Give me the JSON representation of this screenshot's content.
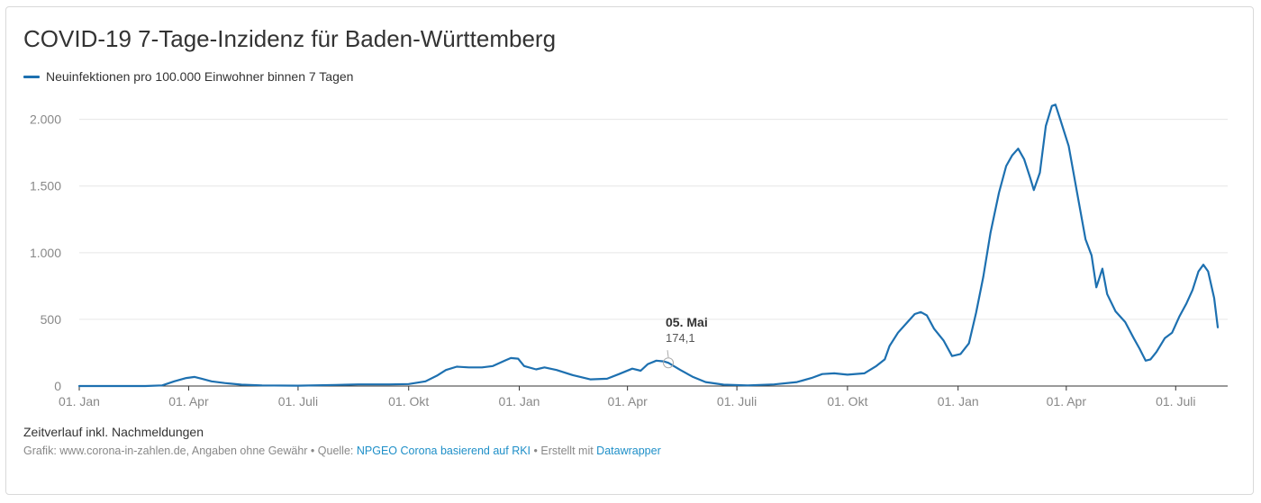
{
  "title": "COVID-19 7-Tage-Inzidenz für Baden-Württemberg",
  "legend_label": "Neuinfektionen pro 100.000 Einwohner binnen 7 Tagen",
  "notes": "Zeitverlauf inkl. Nachmeldungen",
  "footer": {
    "prefix": "Grafik: www.corona-in-zahlen.de, Angaben ohne Gewähr • Quelle: ",
    "source_link": "NPGEO Corona basierend auf RKI",
    "middle": " • Erstellt mit ",
    "tool_link": "Datawrapper"
  },
  "colors": {
    "line": "#1d70b0",
    "grid": "#e6e6e6",
    "axis": "#333333"
  },
  "chart_data": {
    "type": "line",
    "title": "COVID-19 7-Tage-Inzidenz für Baden-Württemberg",
    "xlabel": "",
    "ylabel": "",
    "ylim": [
      0,
      2200
    ],
    "xlim": [
      "2020-01-01",
      "2022-08-05"
    ],
    "y_ticks": [
      0,
      500,
      1000,
      1500,
      2000
    ],
    "y_tick_labels": [
      "0",
      "500",
      "1.000",
      "1.500",
      "2.000"
    ],
    "x_ticks": [
      {
        "date": "2020-01-01",
        "label": "01. Jan"
      },
      {
        "date": "2020-04-01",
        "label": "01. Apr"
      },
      {
        "date": "2020-07-01",
        "label": "01. Juli"
      },
      {
        "date": "2020-10-01",
        "label": "01. Okt"
      },
      {
        "date": "2021-01-01",
        "label": "01. Jan"
      },
      {
        "date": "2021-04-01",
        "label": "01. Apr"
      },
      {
        "date": "2021-07-01",
        "label": "01. Juli"
      },
      {
        "date": "2021-10-01",
        "label": "01. Okt"
      },
      {
        "date": "2022-01-01",
        "label": "01. Jan"
      },
      {
        "date": "2022-04-01",
        "label": "01. Apr"
      },
      {
        "date": "2022-07-01",
        "label": "01. Juli"
      }
    ],
    "grid": true,
    "legend": "top-left",
    "series": [
      {
        "name": "Neuinfektionen pro 100.000 Einwohner binnen 7 Tagen",
        "points": [
          [
            "2020-01-01",
            0
          ],
          [
            "2020-02-25",
            0
          ],
          [
            "2020-03-10",
            5
          ],
          [
            "2020-03-20",
            35
          ],
          [
            "2020-03-30",
            60
          ],
          [
            "2020-04-06",
            68
          ],
          [
            "2020-04-12",
            55
          ],
          [
            "2020-04-20",
            35
          ],
          [
            "2020-05-01",
            22
          ],
          [
            "2020-05-15",
            10
          ],
          [
            "2020-06-01",
            5
          ],
          [
            "2020-07-01",
            3
          ],
          [
            "2020-08-01",
            8
          ],
          [
            "2020-08-20",
            12
          ],
          [
            "2020-09-15",
            12
          ],
          [
            "2020-10-01",
            15
          ],
          [
            "2020-10-15",
            35
          ],
          [
            "2020-10-25",
            80
          ],
          [
            "2020-11-01",
            120
          ],
          [
            "2020-11-10",
            145
          ],
          [
            "2020-11-20",
            140
          ],
          [
            "2020-12-01",
            140
          ],
          [
            "2020-12-10",
            150
          ],
          [
            "2020-12-20",
            190
          ],
          [
            "2020-12-25",
            210
          ],
          [
            "2020-12-31",
            205
          ],
          [
            "2021-01-05",
            150
          ],
          [
            "2021-01-15",
            125
          ],
          [
            "2021-01-22",
            140
          ],
          [
            "2021-02-01",
            120
          ],
          [
            "2021-02-15",
            80
          ],
          [
            "2021-03-01",
            50
          ],
          [
            "2021-03-15",
            55
          ],
          [
            "2021-03-25",
            90
          ],
          [
            "2021-04-05",
            130
          ],
          [
            "2021-04-12",
            115
          ],
          [
            "2021-04-18",
            165
          ],
          [
            "2021-04-25",
            190
          ],
          [
            "2021-05-01",
            185
          ],
          [
            "2021-05-05",
            174.1
          ],
          [
            "2021-05-15",
            120
          ],
          [
            "2021-05-25",
            70
          ],
          [
            "2021-06-05",
            30
          ],
          [
            "2021-06-20",
            10
          ],
          [
            "2021-07-10",
            5
          ],
          [
            "2021-08-01",
            12
          ],
          [
            "2021-08-20",
            30
          ],
          [
            "2021-09-01",
            60
          ],
          [
            "2021-09-10",
            90
          ],
          [
            "2021-09-20",
            95
          ],
          [
            "2021-10-01",
            85
          ],
          [
            "2021-10-15",
            95
          ],
          [
            "2021-10-25",
            150
          ],
          [
            "2021-11-01",
            200
          ],
          [
            "2021-11-05",
            300
          ],
          [
            "2021-11-12",
            400
          ],
          [
            "2021-11-20",
            480
          ],
          [
            "2021-11-26",
            540
          ],
          [
            "2021-12-01",
            555
          ],
          [
            "2021-12-06",
            530
          ],
          [
            "2021-12-12",
            430
          ],
          [
            "2021-12-20",
            340
          ],
          [
            "2021-12-27",
            225
          ],
          [
            "2022-01-03",
            240
          ],
          [
            "2022-01-10",
            320
          ],
          [
            "2022-01-16",
            550
          ],
          [
            "2022-01-22",
            820
          ],
          [
            "2022-01-28",
            1150
          ],
          [
            "2022-02-04",
            1450
          ],
          [
            "2022-02-10",
            1650
          ],
          [
            "2022-02-15",
            1730
          ],
          [
            "2022-02-20",
            1780
          ],
          [
            "2022-02-25",
            1700
          ],
          [
            "2022-03-02",
            1560
          ],
          [
            "2022-03-05",
            1470
          ],
          [
            "2022-03-10",
            1600
          ],
          [
            "2022-03-15",
            1950
          ],
          [
            "2022-03-20",
            2100
          ],
          [
            "2022-03-23",
            2110
          ],
          [
            "2022-03-27",
            2000
          ],
          [
            "2022-04-03",
            1800
          ],
          [
            "2022-04-10",
            1450
          ],
          [
            "2022-04-17",
            1100
          ],
          [
            "2022-04-22",
            980
          ],
          [
            "2022-04-26",
            740
          ],
          [
            "2022-05-01",
            880
          ],
          [
            "2022-05-05",
            690
          ],
          [
            "2022-05-12",
            560
          ],
          [
            "2022-05-20",
            480
          ],
          [
            "2022-05-27",
            360
          ],
          [
            "2022-06-01",
            280
          ],
          [
            "2022-06-06",
            190
          ],
          [
            "2022-06-10",
            200
          ],
          [
            "2022-06-15",
            255
          ],
          [
            "2022-06-22",
            360
          ],
          [
            "2022-06-28",
            400
          ],
          [
            "2022-07-04",
            520
          ],
          [
            "2022-07-10",
            620
          ],
          [
            "2022-07-15",
            720
          ],
          [
            "2022-07-20",
            860
          ],
          [
            "2022-07-24",
            910
          ],
          [
            "2022-07-28",
            860
          ],
          [
            "2022-08-02",
            660
          ],
          [
            "2022-08-05",
            440
          ]
        ]
      }
    ],
    "annotation": {
      "date": "2021-05-05",
      "date_label": "05. Mai",
      "value_label": "174,1"
    }
  }
}
